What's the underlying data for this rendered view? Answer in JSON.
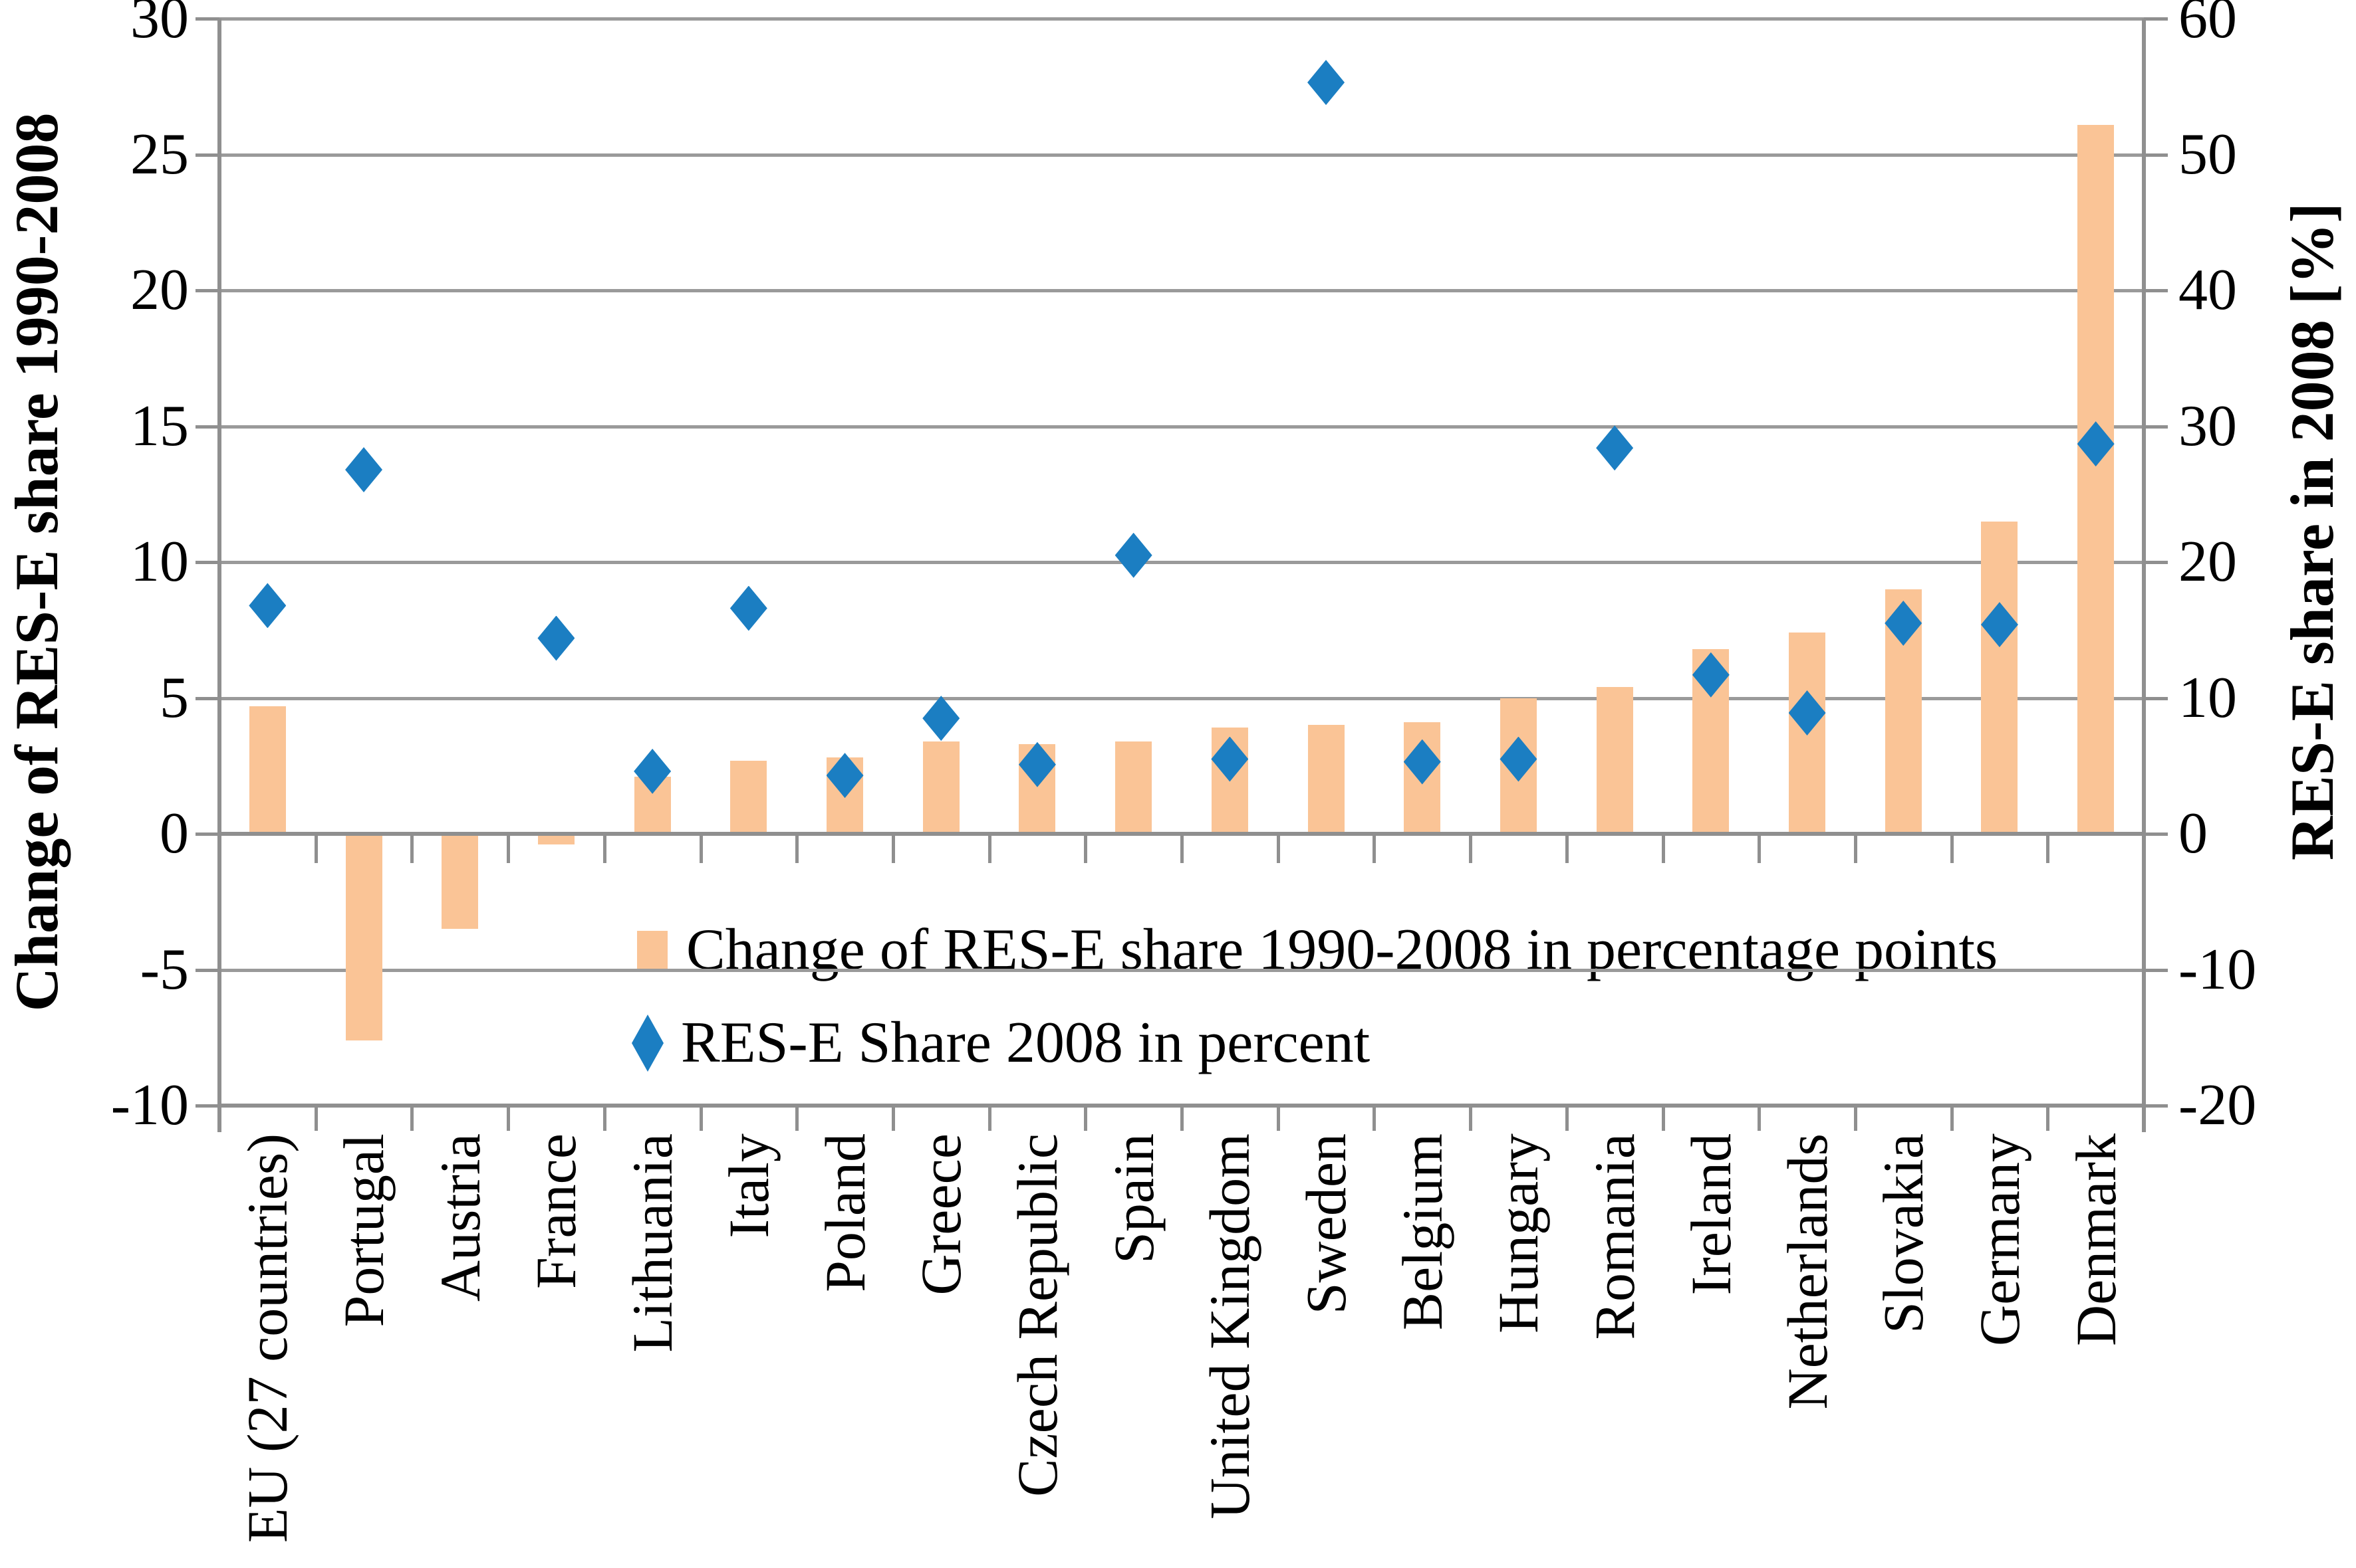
{
  "figure": {
    "description": "Bar and diamond-marker combination chart of renewable electricity (RES-E) shares for EU countries"
  },
  "left_axis": {
    "title": "Change of RES-E share 1990-2008",
    "min": -10,
    "max": 30,
    "step": 5,
    "tick_labels": [
      "30",
      "25",
      "20",
      "15",
      "10",
      "5",
      "0",
      "-5",
      "-10"
    ]
  },
  "right_axis": {
    "title": "RES-E share in 2008 [%]",
    "min": -20,
    "max": 60,
    "step": 10,
    "tick_labels": [
      "60",
      "50",
      "40",
      "30",
      "20",
      "10",
      "0",
      "-10",
      "-20"
    ]
  },
  "legend": {
    "items": [
      {
        "label": "Change of RES-E share 1990-2008 in percentage points",
        "marker": "bar-swatch-icon",
        "color": "#fac496"
      },
      {
        "label": "RES-E Share 2008 in percent",
        "marker": "diamond-icon",
        "color": "#1b7ec2"
      }
    ]
  },
  "colors": {
    "bar_fill": "#fac496",
    "diamond_fill": "#1b7ec2",
    "gridline": "#9a9a9a",
    "axis_line": "#8f8f8f",
    "text": "#000000"
  },
  "chart_data": {
    "type": "bar",
    "categories": [
      "EU (27 countries)",
      "Portugal",
      "Austria",
      "France",
      "Lithuania",
      "Italy",
      "Poland",
      "Greece",
      "Czech Republic",
      "Spain",
      "United Kingdom",
      "Sweden",
      "Belgium",
      "Hungary",
      "Romania",
      "Ireland",
      "Netherlands",
      "Slovakia",
      "Germany",
      "Denmark"
    ],
    "series": [
      {
        "name": "Change of RES-E share 1990-2008 in percentage points",
        "type": "bar",
        "axis": "left",
        "values": [
          4.7,
          -7.6,
          -3.5,
          -0.4,
          2.1,
          2.7,
          2.8,
          3.4,
          3.3,
          3.4,
          3.9,
          4.0,
          4.1,
          5.0,
          5.4,
          6.8,
          7.4,
          9.0,
          11.5,
          26.1
        ]
      },
      {
        "name": "RES-E Share 2008 in percent",
        "type": "scatter",
        "marker": "diamond",
        "axis": "right",
        "values": [
          16.8,
          26.8,
          null,
          14.4,
          4.6,
          16.6,
          4.3,
          8.5,
          5.1,
          20.5,
          5.5,
          55.3,
          5.3,
          5.5,
          28.4,
          11.7,
          8.9,
          15.5,
          15.4,
          28.7
        ]
      }
    ],
    "left_ylim": [
      -10,
      30
    ],
    "right_ylim": [
      -20,
      60
    ],
    "grid": true,
    "legend_position": "inside-center-left",
    "note": "Austria has no visible diamond marker (value above right-axis maximum, not plotted)"
  }
}
